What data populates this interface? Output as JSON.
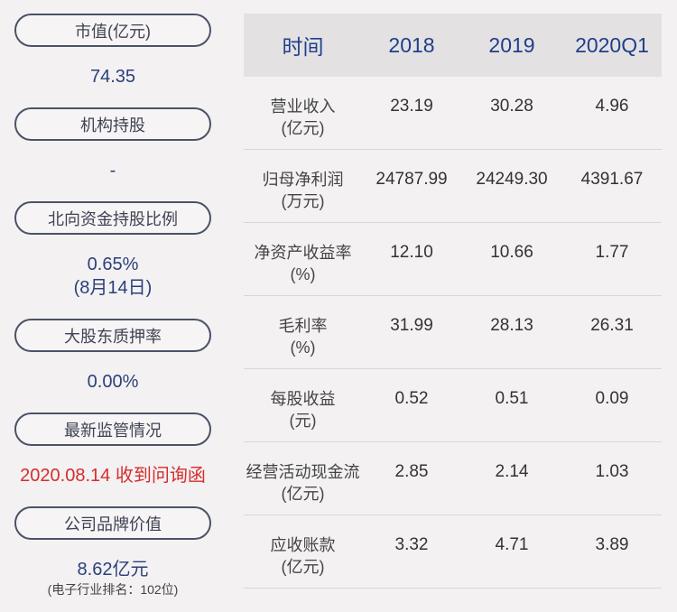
{
  "left": {
    "items": [
      {
        "label": "市值(亿元)",
        "value": "74.35"
      },
      {
        "label": "机构持股",
        "value": "-"
      },
      {
        "label": "北向资金持股比例",
        "value": "0.65%",
        "value2": "(8月14日)"
      },
      {
        "label": "大股东质押率",
        "value": "0.00%"
      },
      {
        "label": "最新监管情况",
        "value": "2020.08.14 收到问询函"
      },
      {
        "label": "公司品牌价值",
        "value": "8.62亿元",
        "note": "(电子行业排名：102位)"
      }
    ]
  },
  "table": {
    "headers": [
      "时间",
      "2018",
      "2019",
      "2020Q1"
    ],
    "rows": [
      {
        "name": "营业收入",
        "unit": "(亿元)",
        "v": [
          "23.19",
          "30.28",
          "4.96"
        ]
      },
      {
        "name": "归母净利润",
        "unit": "(万元)",
        "v": [
          "24787.99",
          "24249.30",
          "4391.67"
        ]
      },
      {
        "name": "净资产收益率",
        "unit": "(%)",
        "v": [
          "12.10",
          "10.66",
          "1.77"
        ]
      },
      {
        "name": "毛利率",
        "unit": "(%)",
        "v": [
          "31.99",
          "28.13",
          "26.31"
        ]
      },
      {
        "name": "每股收益",
        "unit": "(元)",
        "v": [
          "0.52",
          "0.51",
          "0.09"
        ]
      },
      {
        "name": "经营活动现金流",
        "unit": "(亿元)",
        "v": [
          "2.85",
          "2.14",
          "1.03"
        ]
      },
      {
        "name": "应收账款",
        "unit": "(亿元)",
        "v": [
          "3.32",
          "4.71",
          "3.89"
        ]
      }
    ]
  },
  "colors": {
    "accent": "#2c3f7a",
    "alert": "#d62d2d",
    "pill_border": "#4b5266",
    "header_bg": "#e4e1e3"
  }
}
